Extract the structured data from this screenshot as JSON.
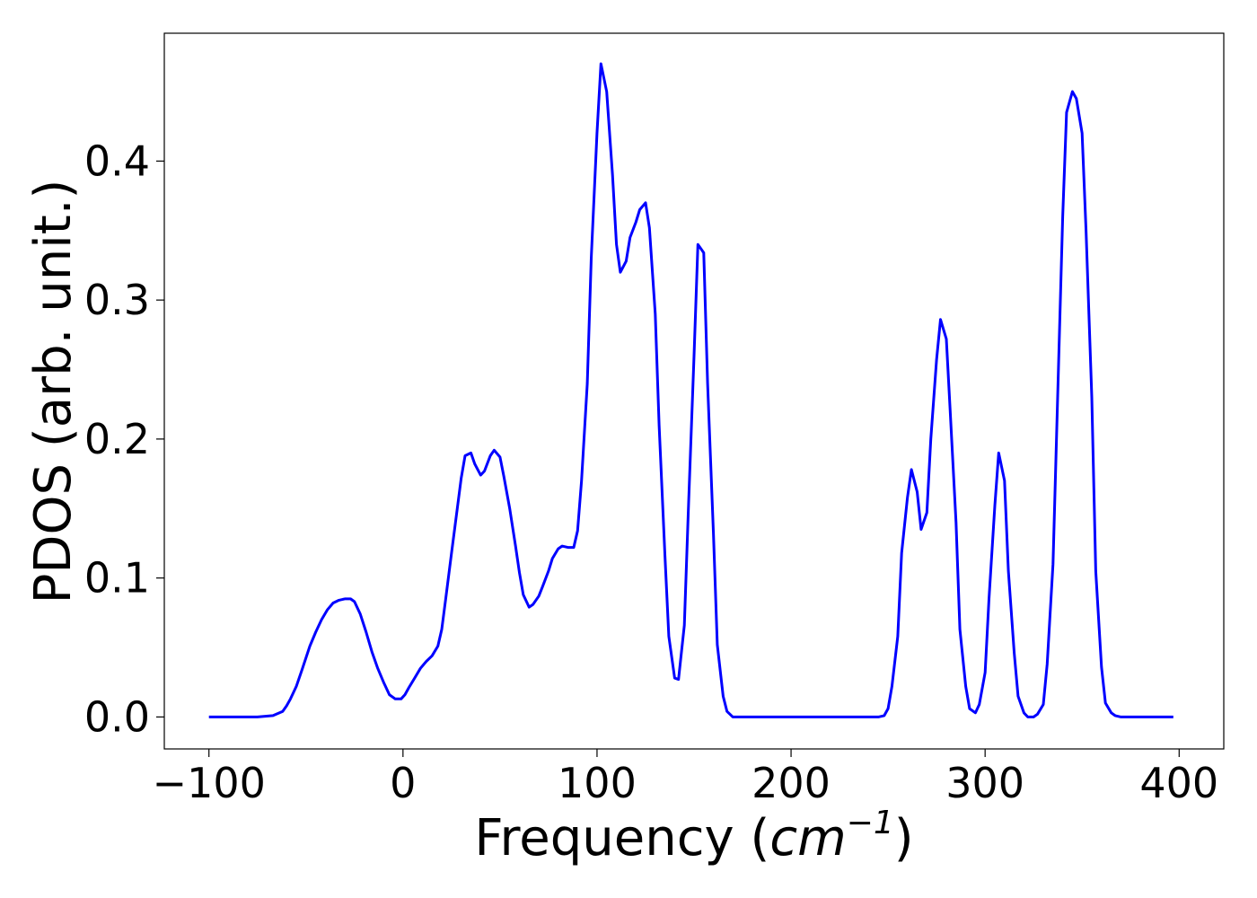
{
  "chart_data": {
    "type": "line",
    "title": "",
    "xlabel": "Frequency (cm^-1)",
    "xlabel_parts": {
      "prefix": "Frequency (",
      "unit": "cm",
      "exponent": "−1",
      "suffix": ")"
    },
    "ylabel": "PDOS (arb. unit.)",
    "xlim": [
      -123,
      423
    ],
    "ylim": [
      -0.023,
      0.492
    ],
    "xticks": [
      -100,
      0,
      100,
      200,
      300,
      400
    ],
    "xtick_labels": [
      "−100",
      "0",
      "100",
      "200",
      "300",
      "400"
    ],
    "yticks": [
      0.0,
      0.1,
      0.2,
      0.3,
      0.4
    ],
    "ytick_labels": [
      "0.0",
      "0.1",
      "0.2",
      "0.3",
      "0.4"
    ],
    "grid": false,
    "legend": "none",
    "series": [
      {
        "color": "#0000ff",
        "x": [
          -100,
          -75,
          -67,
          -62,
          -60,
          -58,
          -55,
          -52,
          -48,
          -45,
          -42,
          -39,
          -36,
          -33,
          -30,
          -27,
          -25,
          -22,
          -19,
          -16,
          -13,
          -10,
          -7,
          -4,
          -1,
          1,
          3,
          6,
          9,
          12,
          15,
          18,
          20,
          22,
          25,
          28,
          30,
          32,
          35,
          37,
          40,
          42,
          45,
          47,
          50,
          52,
          55,
          58,
          60,
          62,
          65,
          67,
          70,
          72,
          75,
          77,
          80,
          82,
          85,
          88,
          90,
          92,
          95,
          97,
          100,
          102,
          105,
          108,
          110,
          112,
          115,
          117,
          120,
          122,
          125,
          127,
          130,
          132,
          135,
          137,
          140,
          142,
          145,
          147,
          150,
          152,
          155,
          157,
          160,
          162,
          165,
          167,
          170,
          175,
          200,
          225,
          245,
          248,
          250,
          252,
          255,
          257,
          260,
          262,
          265,
          267,
          270,
          272,
          275,
          277,
          280,
          282,
          285,
          287,
          290,
          292,
          295,
          297,
          300,
          302,
          305,
          307,
          310,
          312,
          315,
          317,
          320,
          322,
          325,
          327,
          330,
          332,
          335,
          337,
          340,
          342,
          345,
          347,
          350,
          352,
          355,
          357,
          360,
          362,
          365,
          367,
          370,
          375,
          397
        ],
        "y": [
          0.0,
          0.0,
          0.001,
          0.004,
          0.008,
          0.013,
          0.022,
          0.034,
          0.051,
          0.061,
          0.07,
          0.077,
          0.082,
          0.084,
          0.085,
          0.085,
          0.083,
          0.074,
          0.061,
          0.047,
          0.035,
          0.025,
          0.016,
          0.013,
          0.013,
          0.016,
          0.021,
          0.028,
          0.035,
          0.04,
          0.044,
          0.051,
          0.063,
          0.085,
          0.118,
          0.15,
          0.172,
          0.188,
          0.19,
          0.182,
          0.174,
          0.177,
          0.188,
          0.192,
          0.187,
          0.173,
          0.15,
          0.123,
          0.104,
          0.088,
          0.079,
          0.081,
          0.087,
          0.094,
          0.105,
          0.114,
          0.121,
          0.123,
          0.122,
          0.122,
          0.134,
          0.17,
          0.24,
          0.33,
          0.42,
          0.47,
          0.45,
          0.39,
          0.34,
          0.32,
          0.328,
          0.345,
          0.356,
          0.365,
          0.37,
          0.352,
          0.29,
          0.21,
          0.116,
          0.058,
          0.028,
          0.027,
          0.066,
          0.146,
          0.26,
          0.34,
          0.334,
          0.24,
          0.132,
          0.052,
          0.015,
          0.004,
          0.0,
          0.0,
          0.0,
          0.0,
          0.0,
          0.001,
          0.006,
          0.022,
          0.058,
          0.118,
          0.158,
          0.178,
          0.162,
          0.135,
          0.147,
          0.2,
          0.257,
          0.286,
          0.272,
          0.22,
          0.14,
          0.063,
          0.022,
          0.006,
          0.003,
          0.009,
          0.032,
          0.085,
          0.152,
          0.19,
          0.17,
          0.105,
          0.046,
          0.015,
          0.003,
          0.0,
          0.0,
          0.002,
          0.009,
          0.038,
          0.11,
          0.21,
          0.36,
          0.435,
          0.45,
          0.445,
          0.42,
          0.35,
          0.23,
          0.105,
          0.036,
          0.01,
          0.003,
          0.001,
          0.0,
          0.0,
          0.0
        ]
      }
    ]
  }
}
